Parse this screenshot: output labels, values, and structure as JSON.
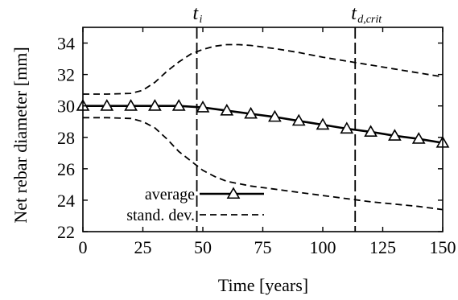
{
  "chart_data": {
    "type": "line",
    "xlabel": "Time [years]",
    "ylabel": "Net rebar diameter [mm]",
    "xlim": [
      0,
      150
    ],
    "ylim": [
      22,
      35
    ],
    "xticks": [
      0,
      25,
      50,
      75,
      100,
      125,
      150
    ],
    "yticks": [
      22,
      24,
      26,
      28,
      30,
      32,
      34
    ],
    "grid": false,
    "legend_position": "bottom-center",
    "series": [
      {
        "name": "average",
        "style": "solid-triangle",
        "color": "#000000",
        "x": [
          0,
          10,
          20,
          30,
          40,
          50,
          60,
          70,
          80,
          90,
          100,
          110,
          120,
          130,
          140,
          150
        ],
        "y": [
          30.0,
          30.0,
          30.0,
          30.0,
          30.0,
          29.9,
          29.7,
          29.5,
          29.3,
          29.05,
          28.8,
          28.55,
          28.35,
          28.1,
          27.9,
          27.65
        ]
      },
      {
        "name": "stand. dev.",
        "style": "dashed",
        "color": "#000000",
        "x": [
          0,
          10,
          20,
          25,
          30,
          35,
          40,
          45,
          50,
          55,
          60,
          65,
          70,
          80,
          90,
          100,
          110,
          120,
          130,
          140,
          150
        ],
        "y": [
          30.75,
          30.75,
          30.8,
          31.0,
          31.5,
          32.2,
          32.8,
          33.3,
          33.6,
          33.8,
          33.9,
          33.9,
          33.85,
          33.65,
          33.4,
          33.1,
          32.85,
          32.6,
          32.35,
          32.1,
          31.85
        ]
      },
      {
        "name": "",
        "style": "dashed",
        "color": "#000000",
        "x": [
          0,
          10,
          20,
          25,
          30,
          35,
          40,
          45,
          50,
          55,
          60,
          65,
          70,
          80,
          90,
          100,
          110,
          120,
          130,
          140,
          150
        ],
        "y": [
          29.25,
          29.25,
          29.2,
          29.0,
          28.6,
          27.9,
          27.1,
          26.5,
          25.9,
          25.5,
          25.2,
          25.05,
          24.9,
          24.7,
          24.5,
          24.3,
          24.1,
          23.9,
          23.75,
          23.6,
          23.4
        ]
      }
    ],
    "vertical_lines": [
      {
        "x": 47.5,
        "label_main": "t",
        "label_sub": "i"
      },
      {
        "x": 113.5,
        "label_main": "t",
        "label_sub": "d,crit"
      }
    ]
  }
}
